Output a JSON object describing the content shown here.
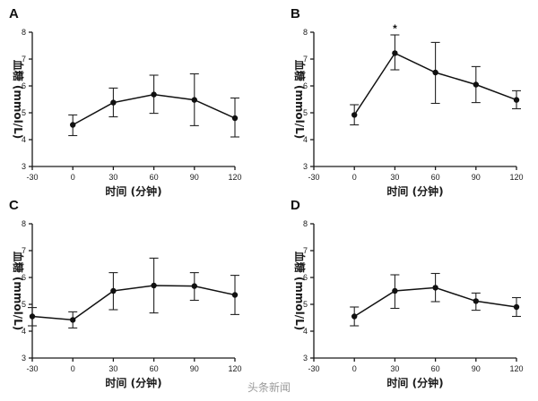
{
  "watermark": "头条新闻",
  "chart_data": [
    {
      "panel": "A",
      "type": "line",
      "x": [
        0,
        30,
        60,
        90,
        120
      ],
      "y": [
        4.55,
        5.38,
        5.68,
        5.48,
        4.8
      ],
      "err_low": [
        4.15,
        4.85,
        4.98,
        4.52,
        4.1
      ],
      "err_high": [
        4.92,
        5.92,
        6.4,
        6.45,
        5.55
      ],
      "xlim": [
        -30,
        120
      ],
      "ylim": [
        3,
        8
      ],
      "xticks": [
        "-30",
        "0",
        "30",
        "60",
        "90",
        "120"
      ],
      "yticks": [
        "3",
        "4",
        "5",
        "6",
        "7",
        "8"
      ],
      "xlabel": "时间 (分钟)",
      "ylabel": "血糖 (mmol/L)",
      "annotations": []
    },
    {
      "panel": "B",
      "type": "line",
      "x": [
        0,
        30,
        60,
        90,
        120
      ],
      "y": [
        4.92,
        7.22,
        6.5,
        6.05,
        5.48
      ],
      "err_low": [
        4.55,
        6.6,
        5.35,
        5.38,
        5.15
      ],
      "err_high": [
        5.3,
        7.9,
        7.62,
        6.72,
        5.82
      ],
      "xlim": [
        -30,
        120
      ],
      "ylim": [
        3,
        8
      ],
      "xticks": [
        "-30",
        "0",
        "30",
        "60",
        "90",
        "120"
      ],
      "yticks": [
        "3",
        "4",
        "5",
        "6",
        "7",
        "8"
      ],
      "xlabel": "时间 (分钟)",
      "ylabel": "血糖 (mmol/L)",
      "annotations": [
        {
          "text": "*",
          "x": 30
        }
      ]
    },
    {
      "panel": "C",
      "type": "line",
      "x": [
        -30,
        0,
        30,
        60,
        90,
        120
      ],
      "y": [
        4.55,
        4.42,
        5.5,
        5.7,
        5.68,
        5.35
      ],
      "err_low": [
        4.2,
        4.12,
        4.8,
        4.68,
        5.15,
        4.62
      ],
      "err_high": [
        4.88,
        4.72,
        6.18,
        6.72,
        6.18,
        6.08
      ],
      "xlim": [
        -30,
        120
      ],
      "ylim": [
        3,
        8
      ],
      "xticks": [
        "-30",
        "0",
        "30",
        "60",
        "90",
        "120"
      ],
      "yticks": [
        "3",
        "4",
        "5",
        "6",
        "7",
        "8"
      ],
      "xlabel": "时间 (分钟)",
      "ylabel": "血糖 (mmol/L)",
      "annotations": []
    },
    {
      "panel": "D",
      "type": "line",
      "x": [
        0,
        30,
        60,
        90,
        120
      ],
      "y": [
        4.55,
        5.5,
        5.62,
        5.12,
        4.9
      ],
      "err_low": [
        4.2,
        4.85,
        5.1,
        4.78,
        4.55
      ],
      "err_high": [
        4.9,
        6.1,
        6.15,
        5.42,
        5.25
      ],
      "xlim": [
        -30,
        120
      ],
      "ylim": [
        3,
        8
      ],
      "xticks": [
        "-30",
        "0",
        "30",
        "60",
        "90",
        "120"
      ],
      "yticks": [
        "3",
        "4",
        "5",
        "6",
        "7",
        "8"
      ],
      "xlabel": "时间 (分钟)",
      "ylabel": "血糖 (mmol/L)",
      "annotations": []
    }
  ]
}
